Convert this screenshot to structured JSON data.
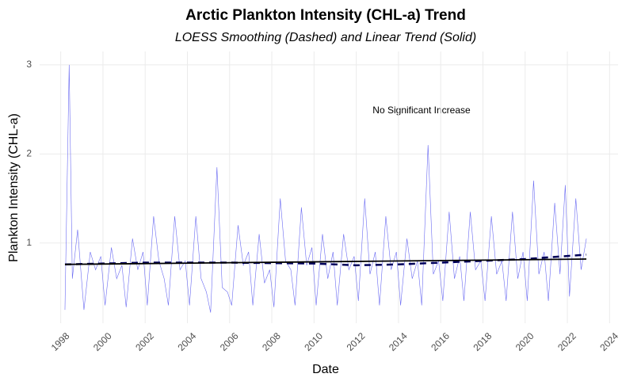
{
  "chart_data": {
    "type": "line",
    "title": "Arctic Plankton Intensity (CHL-a) Trend",
    "subtitle": "LOESS Smoothing (Dashed) and Linear Trend (Solid)",
    "x_label": "Date",
    "y_label": "Plankton Intensity (CHL-a)",
    "annotation": "No Significant Increase",
    "xlim": [
      1997.0,
      2024.4
    ],
    "ylim": [
      0.1,
      3.15
    ],
    "xticks": [
      1998,
      2000,
      2002,
      2004,
      2006,
      2008,
      2010,
      2012,
      2014,
      2016,
      2018,
      2020,
      2022,
      2024
    ],
    "yticks": [
      1,
      2,
      3
    ],
    "grid": true,
    "series": [
      {
        "name": "CHL-a",
        "color": "#6b6bf2",
        "style": "solid",
        "width": 0.6,
        "x": [
          1998.2,
          1998.4,
          1998.55,
          1998.8,
          1999.1,
          1999.4,
          1999.65,
          1999.9,
          2000.1,
          2000.4,
          2000.65,
          2000.9,
          2001.1,
          2001.4,
          2001.65,
          2001.9,
          2002.1,
          2002.4,
          2002.65,
          2002.9,
          2003.1,
          2003.4,
          2003.65,
          2003.9,
          2004.1,
          2004.4,
          2004.65,
          2004.9,
          2005.1,
          2005.4,
          2005.65,
          2005.9,
          2006.1,
          2006.4,
          2006.65,
          2006.9,
          2007.1,
          2007.4,
          2007.65,
          2007.9,
          2008.1,
          2008.4,
          2008.65,
          2008.9,
          2009.1,
          2009.4,
          2009.65,
          2009.9,
          2010.1,
          2010.4,
          2010.65,
          2010.9,
          2011.1,
          2011.4,
          2011.65,
          2011.9,
          2012.1,
          2012.4,
          2012.65,
          2012.9,
          2013.1,
          2013.4,
          2013.65,
          2013.9,
          2014.1,
          2014.4,
          2014.65,
          2014.9,
          2015.1,
          2015.4,
          2015.65,
          2015.9,
          2016.1,
          2016.4,
          2016.65,
          2016.9,
          2017.1,
          2017.4,
          2017.65,
          2017.9,
          2018.1,
          2018.4,
          2018.65,
          2018.9,
          2019.1,
          2019.4,
          2019.65,
          2019.9,
          2020.1,
          2020.4,
          2020.65,
          2020.9,
          2021.1,
          2021.4,
          2021.65,
          2021.9,
          2022.1,
          2022.4,
          2022.65,
          2022.9
        ],
        "values": [
          0.25,
          3.0,
          0.6,
          1.15,
          0.25,
          0.9,
          0.7,
          0.85,
          0.3,
          0.95,
          0.6,
          0.75,
          0.28,
          1.05,
          0.7,
          0.9,
          0.3,
          1.3,
          0.8,
          0.6,
          0.3,
          1.3,
          0.7,
          0.8,
          0.3,
          1.3,
          0.6,
          0.45,
          0.22,
          1.85,
          0.5,
          0.45,
          0.3,
          1.2,
          0.75,
          0.9,
          0.3,
          1.1,
          0.55,
          0.7,
          0.28,
          1.5,
          0.8,
          0.7,
          0.3,
          1.4,
          0.75,
          0.95,
          0.3,
          1.1,
          0.6,
          0.9,
          0.3,
          1.1,
          0.7,
          0.85,
          0.35,
          1.5,
          0.65,
          0.9,
          0.3,
          1.3,
          0.7,
          0.9,
          0.3,
          1.05,
          0.6,
          0.8,
          0.3,
          2.1,
          0.65,
          0.8,
          0.35,
          1.35,
          0.6,
          0.85,
          0.35,
          1.35,
          0.7,
          0.8,
          0.35,
          1.3,
          0.65,
          0.8,
          0.35,
          1.35,
          0.6,
          0.9,
          0.35,
          1.7,
          0.65,
          0.9,
          0.35,
          1.45,
          0.65,
          1.65,
          0.4,
          1.5,
          0.7,
          1.05
        ]
      },
      {
        "name": "LOESS",
        "color": "#00005a",
        "style": "dashed",
        "width": 2.5,
        "x": [
          1998.2,
          2002,
          2006,
          2010,
          2012,
          2014,
          2016,
          2018,
          2020,
          2022.9
        ],
        "values": [
          0.76,
          0.78,
          0.78,
          0.77,
          0.75,
          0.76,
          0.78,
          0.8,
          0.82,
          0.87
        ]
      },
      {
        "name": "Linear trend",
        "color": "#000000",
        "style": "solid",
        "width": 1.8,
        "x": [
          1998.2,
          2022.9
        ],
        "values": [
          0.76,
          0.82
        ]
      }
    ]
  }
}
